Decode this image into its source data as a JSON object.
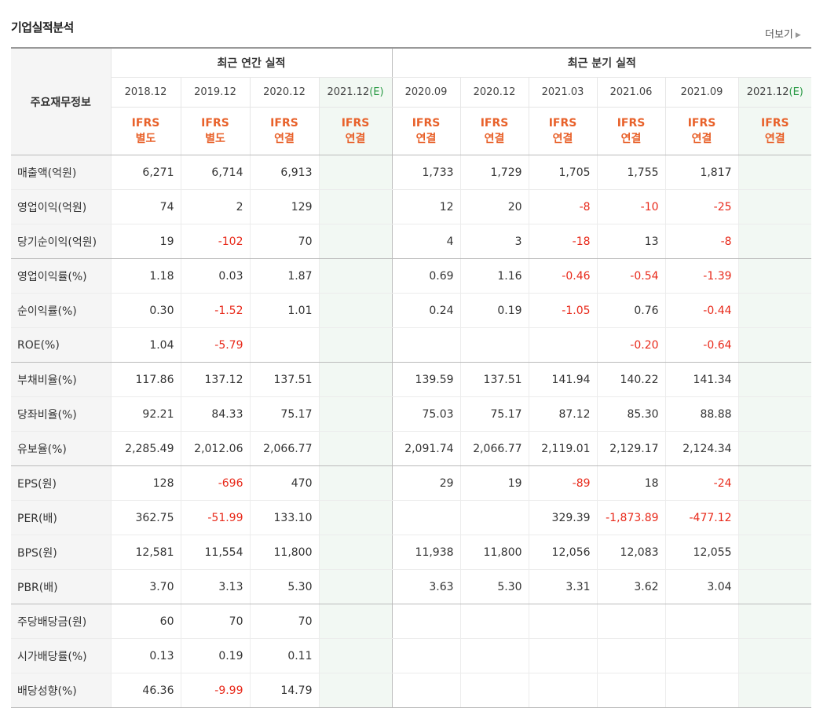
{
  "section_title": "기업실적분석",
  "more_label": "더보기",
  "header": {
    "corner_label": "주요재무정보",
    "annual_group": "최근 연간 실적",
    "quarter_group": "최근 분기 실적",
    "periods": [
      {
        "label": "2018.12",
        "est": false,
        "basis1": "IFRS",
        "basis2": "별도"
      },
      {
        "label": "2019.12",
        "est": false,
        "basis1": "IFRS",
        "basis2": "별도"
      },
      {
        "label": "2020.12",
        "est": false,
        "basis1": "IFRS",
        "basis2": "연결"
      },
      {
        "label": "2021.12",
        "est": true,
        "basis1": "IFRS",
        "basis2": "연결"
      },
      {
        "label": "2020.09",
        "est": false,
        "basis1": "IFRS",
        "basis2": "연결"
      },
      {
        "label": "2020.12",
        "est": false,
        "basis1": "IFRS",
        "basis2": "연결"
      },
      {
        "label": "2021.03",
        "est": false,
        "basis1": "IFRS",
        "basis2": "연결"
      },
      {
        "label": "2021.06",
        "est": false,
        "basis1": "IFRS",
        "basis2": "연결"
      },
      {
        "label": "2021.09",
        "est": false,
        "basis1": "IFRS",
        "basis2": "연결"
      },
      {
        "label": "2021.12",
        "est": true,
        "basis1": "IFRS",
        "basis2": "연결"
      }
    ],
    "est_mark": "(E)"
  },
  "rows": [
    {
      "label": "매출액(억원)",
      "values": [
        "6,271",
        "6,714",
        "6,913",
        "",
        "1,733",
        "1,729",
        "1,705",
        "1,755",
        "1,817",
        ""
      ]
    },
    {
      "label": "영업이익(억원)",
      "values": [
        "74",
        "2",
        "129",
        "",
        "12",
        "20",
        "-8",
        "-10",
        "-25",
        ""
      ]
    },
    {
      "label": "당기순이익(억원)",
      "values": [
        "19",
        "-102",
        "70",
        "",
        "4",
        "3",
        "-18",
        "13",
        "-8",
        ""
      ]
    },
    {
      "label": "영업이익률(%)",
      "values": [
        "1.18",
        "0.03",
        "1.87",
        "",
        "0.69",
        "1.16",
        "-0.46",
        "-0.54",
        "-1.39",
        ""
      ]
    },
    {
      "label": "순이익률(%)",
      "values": [
        "0.30",
        "-1.52",
        "1.01",
        "",
        "0.24",
        "0.19",
        "-1.05",
        "0.76",
        "-0.44",
        ""
      ]
    },
    {
      "label": "ROE(%)",
      "values": [
        "1.04",
        "-5.79",
        "",
        "",
        "",
        "",
        "",
        "-0.20",
        "-0.64",
        ""
      ]
    },
    {
      "label": "부채비율(%)",
      "values": [
        "117.86",
        "137.12",
        "137.51",
        "",
        "139.59",
        "137.51",
        "141.94",
        "140.22",
        "141.34",
        ""
      ]
    },
    {
      "label": "당좌비율(%)",
      "values": [
        "92.21",
        "84.33",
        "75.17",
        "",
        "75.03",
        "75.17",
        "87.12",
        "85.30",
        "88.88",
        ""
      ]
    },
    {
      "label": "유보율(%)",
      "values": [
        "2,285.49",
        "2,012.06",
        "2,066.77",
        "",
        "2,091.74",
        "2,066.77",
        "2,119.01",
        "2,129.17",
        "2,124.34",
        ""
      ]
    },
    {
      "label": "EPS(원)",
      "values": [
        "128",
        "-696",
        "470",
        "",
        "29",
        "19",
        "-89",
        "18",
        "-24",
        ""
      ]
    },
    {
      "label": "PER(배)",
      "values": [
        "362.75",
        "-51.99",
        "133.10",
        "",
        "",
        "",
        "329.39",
        "-1,873.89",
        "-477.12",
        ""
      ]
    },
    {
      "label": "BPS(원)",
      "values": [
        "12,581",
        "11,554",
        "11,800",
        "",
        "11,938",
        "11,800",
        "12,056",
        "12,083",
        "12,055",
        ""
      ]
    },
    {
      "label": "PBR(배)",
      "values": [
        "3.70",
        "3.13",
        "5.30",
        "",
        "3.63",
        "5.30",
        "3.31",
        "3.62",
        "3.04",
        ""
      ]
    },
    {
      "label": "주당배당금(원)",
      "values": [
        "60",
        "70",
        "70",
        "",
        "",
        "",
        "",
        "",
        "",
        ""
      ]
    },
    {
      "label": "시가배당률(%)",
      "values": [
        "0.13",
        "0.19",
        "0.11",
        "",
        "",
        "",
        "",
        "",
        "",
        ""
      ]
    },
    {
      "label": "배당성향(%)",
      "values": [
        "46.36",
        "-9.99",
        "14.79",
        "",
        "",
        "",
        "",
        "",
        "",
        ""
      ]
    }
  ],
  "colors": {
    "negative": "#e8291a",
    "basis": "#e8612a",
    "estimate_bg": "#f2f8f3",
    "estimate_mark": "#2c9b47"
  }
}
